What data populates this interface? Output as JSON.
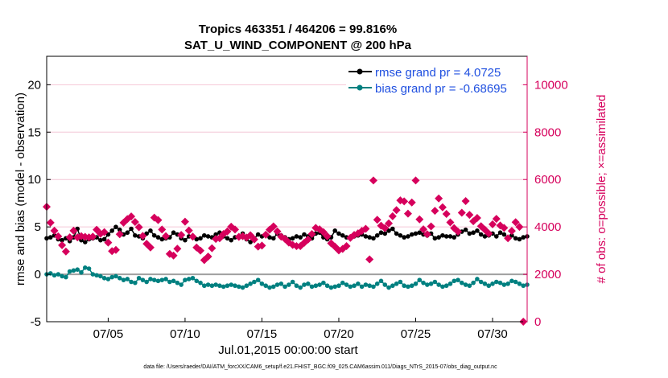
{
  "chart_data": {
    "type": "line",
    "title": "Tropics 463351 / 464206 = 99.816%",
    "subtitle": "SAT_U_WIND_COMPONENT @ 200 hPa",
    "xlabel": "Jul.01,2015 00:00:00 start",
    "ylabel": "rmse and bias (model - observation)",
    "ylabel_right": "# of obs: o=possible; ×=assimilated",
    "footnote": "data file: /Users/raeder/DAI/ATM_forcXX/CAM6_setup/f.e21.FHIST_BGC.f09_025.CAM6assim.011/Diags_NTrS_2015-07/obs_diag_output.nc",
    "xlim": [
      1,
      32.25
    ],
    "ylim": [
      -5,
      23
    ],
    "ylim_right": [
      0,
      11200
    ],
    "xticks": [
      5,
      10,
      15,
      20,
      25,
      30
    ],
    "xtick_labels": [
      "07/05",
      "07/10",
      "07/15",
      "07/20",
      "07/25",
      "07/30"
    ],
    "yticks": [
      -5,
      0,
      5,
      10,
      15,
      20
    ],
    "ytick_labels": [
      "-5",
      "0",
      "5",
      "10",
      "15",
      "20"
    ],
    "yticks_right": [
      0,
      2000,
      4000,
      6000,
      8000,
      10000
    ],
    "ytick_labels_right": [
      "0",
      "2000",
      "4000",
      "6000",
      "8000",
      "10000"
    ],
    "x_step_days": 0.25,
    "series": [
      {
        "name": "rmse",
        "legend": "rmse grand pr = 4.0725",
        "color": "#000000",
        "axis": "left",
        "values": [
          3.8,
          3.9,
          4.1,
          3.7,
          3.6,
          3.8,
          3.5,
          3.9,
          4.8,
          3.6,
          3.4,
          3.7,
          3.8,
          3.9,
          3.6,
          3.7,
          4.2,
          4.6,
          5.0,
          4.7,
          4.2,
          4.4,
          4.8,
          4.1,
          4.0,
          3.8,
          4.3,
          4.6,
          4.1,
          3.9,
          3.7,
          3.8,
          3.9,
          4.4,
          4.2,
          3.8,
          3.6,
          4.0,
          3.9,
          3.7,
          3.8,
          4.1,
          4.0,
          3.9,
          4.2,
          4.4,
          4.0,
          3.8,
          3.6,
          3.9,
          4.0,
          4.3,
          3.7,
          3.4,
          3.8,
          4.2,
          4.0,
          4.1,
          3.9,
          3.8,
          4.3,
          4.1,
          3.9,
          3.7,
          3.8,
          4.0,
          3.9,
          4.2,
          4.0,
          3.8,
          4.3,
          4.4,
          3.9,
          3.7,
          3.9,
          4.6,
          4.3,
          4.1,
          3.9,
          3.8,
          4.0,
          4.1,
          4.2,
          4.0,
          3.9,
          3.8,
          4.1,
          4.4,
          4.3,
          4.6,
          4.8,
          4.3,
          4.1,
          3.9,
          4.0,
          4.2,
          4.3,
          4.4,
          4.2,
          4.1,
          4.3,
          3.8,
          3.9,
          4.1,
          4.0,
          4.0,
          3.9,
          4.2,
          4.5,
          4.7,
          4.3,
          4.4,
          4.6,
          4.2,
          4.0,
          4.1,
          4.3,
          4.0,
          4.4,
          4.2,
          3.9,
          4.1,
          3.8,
          3.7,
          3.9,
          4.0,
          3.8,
          3.6,
          3.7,
          4.0,
          4.2,
          3.9,
          3.8,
          3.5,
          3.4,
          3.9,
          4.0,
          3.7,
          3.6,
          3.8,
          4.1,
          4.0,
          3.9,
          3.8,
          3.7,
          3.6,
          3.5,
          3.8,
          3.9,
          4.1,
          4.0,
          3.9,
          3.6,
          3.7,
          3.8,
          4.0,
          4.2,
          3.9,
          3.8,
          3.7,
          3.9,
          4.3,
          4.1,
          3.8,
          3.6,
          3.5,
          3.8,
          4.0,
          3.9,
          3.7,
          3.8,
          3.6,
          3.7,
          3.9,
          4.0,
          3.8,
          3.7,
          3.5,
          3.8,
          3.6,
          3.7,
          3.6,
          3.5,
          3.4,
          3.6,
          3.7,
          3.8,
          3.6,
          3.5,
          3.4,
          3.4,
          3.3,
          3.5,
          3.5,
          3.4,
          3.3,
          3.5,
          3.6,
          3.5,
          3.4,
          3.3,
          3.5,
          3.4,
          3.5,
          3.6,
          3.6,
          3.5,
          3.5,
          3.4,
          3.5,
          3.5,
          3.4,
          3.5,
          3.4,
          3.4,
          3.5,
          3.6,
          3.5,
          3.4,
          3.4,
          3.5,
          3.6,
          3.5,
          3.4,
          3.4,
          3.5,
          3.4,
          3.5,
          3.6,
          3.5,
          3.4,
          3.5,
          3.5,
          3.5,
          3.4,
          3.4,
          3.5,
          3.5,
          3.5,
          3.5,
          3.5,
          3.5,
          3.5,
          3.5,
          3.5,
          3.5,
          3.4,
          3.5,
          3.5,
          3.5,
          3.5,
          3.5,
          3.5,
          3.5,
          3.4,
          3.4,
          3.4,
          3.4,
          3.4,
          3.5,
          3.4,
          3.4
        ]
      },
      {
        "name": "bias",
        "legend": "bias grand pr = -0.68695",
        "color": "#008080",
        "axis": "left",
        "values": [
          0.0,
          0.1,
          -0.1,
          0.0,
          -0.2,
          -0.3,
          0.3,
          0.4,
          0.5,
          0.2,
          0.7,
          0.6,
          0.0,
          -0.1,
          -0.2,
          -0.4,
          -0.5,
          -0.3,
          -0.2,
          -0.4,
          -0.6,
          -0.5,
          -0.8,
          -0.9,
          -0.4,
          -0.6,
          -0.8,
          -0.5,
          -0.6,
          -0.7,
          -0.6,
          -0.5,
          -0.8,
          -0.7,
          -0.9,
          -1.1,
          -0.6,
          -0.5,
          -0.4,
          -0.7,
          -0.9,
          -1.2,
          -1.1,
          -1.2,
          -1.1,
          -1.2,
          -1.3,
          -1.2,
          -1.1,
          -1.2,
          -1.3,
          -1.4,
          -1.2,
          -1.0,
          -0.8,
          -0.6,
          -1.0,
          -1.2,
          -1.4,
          -1.3,
          -1.1,
          -1.0,
          -1.3,
          -1.1,
          -0.8,
          -1.2,
          -1.4,
          -1.1,
          -1.0,
          -1.3,
          -1.2,
          -1.1,
          -0.9,
          -1.2,
          -1.4,
          -1.3,
          -1.2,
          -0.9,
          -1.1,
          -1.3,
          -1.2,
          -1.0,
          -1.3,
          -1.1,
          -1.2,
          -1.3,
          -1.0,
          -0.7,
          -1.1,
          -1.4,
          -1.2,
          -1.0,
          -0.8,
          -1.2,
          -1.3,
          -1.2,
          -1.0,
          -0.6,
          -0.9,
          -1.1,
          -1.0,
          -0.8,
          -1.1,
          -1.3,
          -1.2,
          -1.0,
          -0.7,
          -0.6,
          -0.9,
          -1.1,
          -1.2,
          -0.9,
          -0.5,
          -0.8,
          -1.0,
          -1.2,
          -1.0,
          -0.8,
          -0.9,
          -1.1,
          -1.0,
          -0.7,
          -0.8,
          -1.0,
          -1.2,
          -1.1,
          -0.9,
          -0.6,
          -0.7,
          -0.9,
          -0.3,
          0.2,
          0.1,
          -0.4,
          -0.8,
          -1.1,
          -1.0,
          -0.9,
          -0.7,
          -1.0,
          -1.2,
          -1.0,
          -0.8,
          -1.1,
          -1.2,
          -1.0,
          -0.8,
          -0.9,
          -1.1,
          -1.3,
          -1.2,
          -1.0,
          -0.9,
          -1.1,
          -1.2,
          -1.0,
          -0.8,
          -1.1,
          -1.2,
          -1.3,
          -1.1,
          -1.0,
          -0.9,
          -1.2,
          -1.3,
          -1.1,
          -1.0,
          -1.2,
          -1.4,
          -1.3,
          -1.2,
          -1.1,
          -1.3,
          -1.4,
          -1.2,
          -1.1,
          -1.0,
          -1.2,
          -1.4,
          -1.3,
          -1.2,
          -1.3,
          -1.2,
          -1.4,
          -1.3,
          -1.2,
          -1.0,
          -0.9,
          -1.1,
          -0.9,
          -0.8,
          -0.9,
          -1.0,
          -0.8,
          -0.7,
          -0.8,
          -0.9,
          -0.8,
          -0.7,
          -0.8,
          -0.8,
          -0.7,
          -0.6,
          -0.5,
          -0.4,
          -0.3,
          -0.2,
          -0.2,
          -0.1,
          -0.1,
          -0.1,
          -0.1,
          -0.1,
          -0.1,
          -0.1,
          -0.1,
          -0.1,
          -0.1,
          -0.1,
          -0.1,
          -0.1,
          -0.1,
          -0.1,
          -0.1,
          -0.1,
          -0.1,
          -0.1,
          -0.1,
          -0.1,
          -0.1,
          -0.1,
          -0.1,
          -0.1,
          -0.1,
          -0.1,
          -0.1,
          -0.1,
          -0.1,
          -0.1,
          -0.1,
          -0.1,
          -0.1,
          -0.1,
          -0.1,
          -0.1,
          -0.1,
          -0.1,
          -0.1,
          -0.1,
          -0.1,
          -0.1,
          -0.1,
          -0.1,
          -0.1,
          -0.1,
          -0.1,
          -0.1,
          -0.1,
          -0.1,
          -0.1,
          -0.1
        ]
      },
      {
        "name": "obs_assimilated",
        "color": "#d6005c",
        "axis": "right",
        "marker": "x",
        "points": [
          [
            1.0,
            4850
          ],
          [
            1.25,
            4180
          ],
          [
            1.5,
            3840
          ],
          [
            1.75,
            3600
          ],
          [
            2.0,
            3230
          ],
          [
            2.25,
            2960
          ],
          [
            2.5,
            3560
          ],
          [
            2.75,
            3840
          ],
          [
            3.0,
            3560
          ],
          [
            3.25,
            3610
          ],
          [
            3.5,
            3580
          ],
          [
            3.75,
            3560
          ],
          [
            4.0,
            3590
          ],
          [
            4.25,
            3880
          ],
          [
            4.5,
            3710
          ],
          [
            4.75,
            3780
          ],
          [
            5.0,
            3340
          ],
          [
            5.25,
            2980
          ],
          [
            5.5,
            3030
          ],
          [
            5.75,
            3690
          ],
          [
            6.0,
            4180
          ],
          [
            6.25,
            4330
          ],
          [
            6.5,
            4440
          ],
          [
            6.75,
            4210
          ],
          [
            7.0,
            3990
          ],
          [
            7.25,
            3620
          ],
          [
            7.5,
            3290
          ],
          [
            7.75,
            3130
          ],
          [
            8.0,
            4390
          ],
          [
            8.25,
            4290
          ],
          [
            8.5,
            3890
          ],
          [
            8.75,
            3610
          ],
          [
            9.0,
            2860
          ],
          [
            9.25,
            2790
          ],
          [
            9.5,
            3080
          ],
          [
            9.75,
            3660
          ],
          [
            10.0,
            4220
          ],
          [
            10.25,
            3850
          ],
          [
            10.5,
            3590
          ],
          [
            10.75,
            3130
          ],
          [
            11.0,
            3000
          ],
          [
            11.25,
            2600
          ],
          [
            11.5,
            2750
          ],
          [
            11.75,
            3100
          ],
          [
            12.0,
            3490
          ],
          [
            12.25,
            3520
          ],
          [
            12.5,
            3700
          ],
          [
            12.75,
            3810
          ],
          [
            13.0,
            4010
          ],
          [
            13.25,
            3890
          ],
          [
            13.5,
            3580
          ],
          [
            13.75,
            3610
          ],
          [
            14.0,
            3550
          ],
          [
            14.25,
            3650
          ],
          [
            14.5,
            3470
          ],
          [
            14.75,
            3170
          ],
          [
            15.0,
            3210
          ],
          [
            15.25,
            3670
          ],
          [
            15.5,
            3880
          ],
          [
            15.75,
            4020
          ],
          [
            16.0,
            3810
          ],
          [
            16.25,
            3590
          ],
          [
            16.5,
            3490
          ],
          [
            16.75,
            3340
          ],
          [
            17.0,
            3240
          ],
          [
            17.25,
            3190
          ],
          [
            17.5,
            3190
          ],
          [
            17.75,
            3330
          ],
          [
            18.0,
            3470
          ],
          [
            18.25,
            3700
          ],
          [
            18.5,
            3960
          ],
          [
            18.75,
            3900
          ],
          [
            19.0,
            3780
          ],
          [
            19.25,
            3600
          ],
          [
            19.5,
            3310
          ],
          [
            19.75,
            3170
          ],
          [
            20.0,
            3010
          ],
          [
            20.25,
            3070
          ],
          [
            20.5,
            3190
          ],
          [
            20.75,
            3540
          ],
          [
            21.0,
            3660
          ],
          [
            21.25,
            3730
          ],
          [
            21.5,
            3830
          ],
          [
            21.75,
            3920
          ],
          [
            22.0,
            2630
          ],
          [
            22.25,
            5960
          ],
          [
            22.5,
            4300
          ],
          [
            22.75,
            4050
          ],
          [
            23.0,
            3950
          ],
          [
            23.25,
            4150
          ],
          [
            23.5,
            4450
          ],
          [
            23.75,
            4710
          ],
          [
            24.0,
            5120
          ],
          [
            24.25,
            5080
          ],
          [
            24.5,
            4560
          ],
          [
            24.75,
            5030
          ],
          [
            25.0,
            5960
          ],
          [
            25.25,
            4320
          ],
          [
            25.5,
            3900
          ],
          [
            25.75,
            3690
          ],
          [
            26.0,
            4020
          ],
          [
            26.25,
            4680
          ],
          [
            26.5,
            5200
          ],
          [
            26.75,
            4830
          ],
          [
            27.0,
            4550
          ],
          [
            27.25,
            4190
          ],
          [
            27.5,
            3950
          ],
          [
            27.75,
            3800
          ],
          [
            28.0,
            4600
          ],
          [
            28.25,
            5090
          ],
          [
            28.5,
            4510
          ],
          [
            28.75,
            4240
          ],
          [
            29.0,
            4380
          ],
          [
            29.25,
            4030
          ],
          [
            29.5,
            3880
          ],
          [
            29.75,
            3720
          ],
          [
            30.0,
            4110
          ],
          [
            30.25,
            4340
          ],
          [
            30.5,
            4060
          ],
          [
            30.75,
            3960
          ],
          [
            31.0,
            3520
          ],
          [
            31.25,
            3830
          ],
          [
            31.5,
            4200
          ],
          [
            31.75,
            4000
          ],
          [
            32.0,
            0
          ]
        ]
      }
    ]
  }
}
